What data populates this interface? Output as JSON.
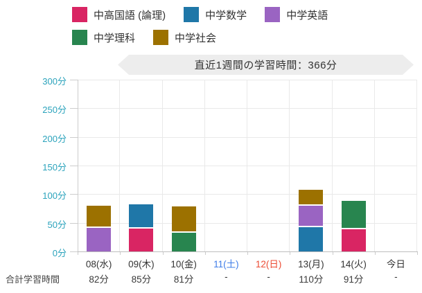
{
  "banner": {
    "text": "直近1週間の学習時間：366分"
  },
  "legend": {
    "items": [
      {
        "label": "中高国語 (論理)",
        "color": "#d92563"
      },
      {
        "label": "中学数学",
        "color": "#1f77a8"
      },
      {
        "label": "中学英語",
        "color": "#9a64c2"
      },
      {
        "label": "中学理科",
        "color": "#28854f"
      },
      {
        "label": "中学社会",
        "color": "#9c7100"
      }
    ]
  },
  "chart_data": {
    "type": "bar",
    "stacked": true,
    "title": "直近1週間の学習時間：366分",
    "categories": [
      "08(水)",
      "09(木)",
      "10(金)",
      "11(土)",
      "12(日)",
      "13(月)",
      "14(火)",
      "今日"
    ],
    "category_label_colors": [
      "#333333",
      "#333333",
      "#333333",
      "#3d7ce8",
      "#ec4b33",
      "#333333",
      "#333333",
      "#333333"
    ],
    "series": [
      {
        "name": "中高国語 (論理)",
        "color": "#d92563",
        "values": [
          0,
          42,
          0,
          0,
          0,
          0,
          41,
          0
        ]
      },
      {
        "name": "中学数学",
        "color": "#1f77a8",
        "values": [
          0,
          43,
          0,
          0,
          0,
          45,
          0,
          0
        ]
      },
      {
        "name": "中学英語",
        "color": "#9a64c2",
        "values": [
          44,
          0,
          0,
          0,
          0,
          37,
          0,
          0
        ]
      },
      {
        "name": "中学理科",
        "color": "#28854f",
        "values": [
          0,
          0,
          35,
          0,
          0,
          0,
          50,
          0
        ]
      },
      {
        "name": "中学社会",
        "color": "#9c7100",
        "values": [
          38,
          0,
          46,
          0,
          0,
          28,
          0,
          0
        ]
      }
    ],
    "ylim": [
      0,
      300
    ],
    "yticks": [
      0,
      50,
      100,
      150,
      200,
      250,
      300
    ],
    "ytick_labels": [
      "0分",
      "50分",
      "100分",
      "150分",
      "200分",
      "250分",
      "300分"
    ],
    "grid": true,
    "legend_position": "top",
    "axis_label_color": "#2ba3bc",
    "totals_row": {
      "label": "合計学習時間",
      "values": [
        "82分",
        "85分",
        "81分",
        "-",
        "-",
        "110分",
        "91分",
        "-"
      ]
    }
  }
}
